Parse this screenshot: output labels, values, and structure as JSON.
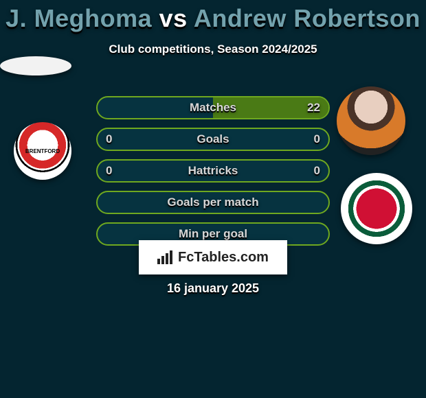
{
  "background_color": "#042530",
  "title": {
    "player1": "J. Meghoma",
    "vs": "vs",
    "player2": "Andrew Robertson",
    "color_players": "#73a2ad",
    "color_vs": "#ffffff",
    "fontsize": 36
  },
  "subtitle": {
    "text": "Club competitions, Season 2024/2025",
    "fontsize": 17
  },
  "bars": {
    "border_color": "#6fa81f",
    "fill_color": "#4a7a15",
    "track_color": "#063340",
    "label_color": "#d7d7d7",
    "items": [
      {
        "label": "Matches",
        "left": "",
        "right": "22",
        "left_pct": 0,
        "right_pct": 100
      },
      {
        "label": "Goals",
        "left": "0",
        "right": "0",
        "left_pct": 0,
        "right_pct": 0
      },
      {
        "label": "Hattricks",
        "left": "0",
        "right": "0",
        "left_pct": 0,
        "right_pct": 0
      },
      {
        "label": "Goals per match",
        "left": "",
        "right": "",
        "left_pct": 0,
        "right_pct": 0
      },
      {
        "label": "Min per goal",
        "left": "",
        "right": "",
        "left_pct": 0,
        "right_pct": 0
      }
    ]
  },
  "left_side": {
    "player_image": "blank-oval",
    "crest": "brentford-fc",
    "crest_text": "BRENTFORD"
  },
  "right_side": {
    "player_image": "andrew-robertson-portrait",
    "crest": "liverpool-fc"
  },
  "brand": {
    "icon": "bar-chart-icon",
    "text": "FcTables.com",
    "background": "#ffffff",
    "text_color": "#222222"
  },
  "date": "16 january 2025"
}
